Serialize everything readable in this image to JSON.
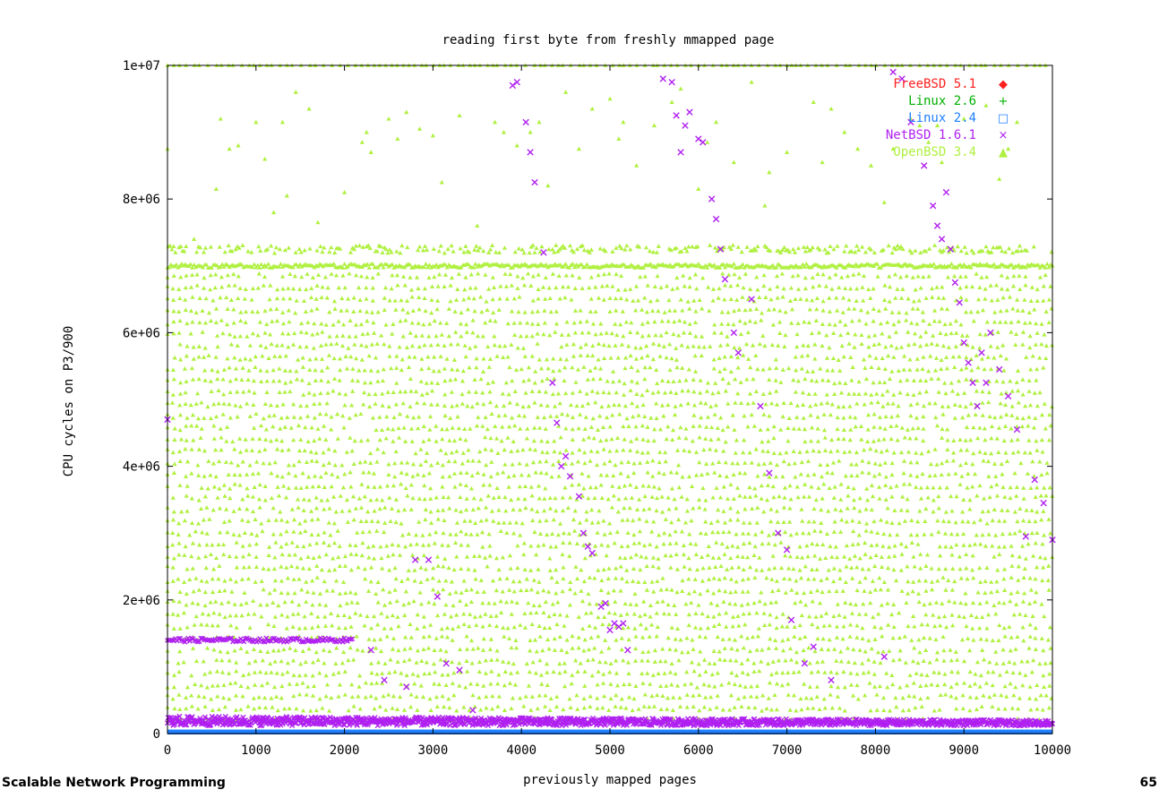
{
  "footer": {
    "left": "Scalable Network Programming",
    "right": "65"
  },
  "chart_data": {
    "type": "scatter",
    "title": "reading first byte from freshly mmapped page",
    "xlabel": "previously mapped pages",
    "ylabel": "CPU cycles on P3/900",
    "xlim": [
      0,
      10000
    ],
    "ylim": [
      0,
      10000000
    ],
    "xticks": [
      0,
      1000,
      2000,
      3000,
      4000,
      5000,
      6000,
      7000,
      8000,
      9000,
      10000
    ],
    "xtick_labels": [
      "0",
      "1000",
      "2000",
      "3000",
      "4000",
      "5000",
      "6000",
      "7000",
      "8000",
      "9000",
      "10000"
    ],
    "yticks": [
      0,
      2000000,
      4000000,
      6000000,
      8000000,
      10000000
    ],
    "ytick_labels": [
      "0",
      "2e+06",
      "4e+06",
      "6e+06",
      "8e+06",
      "1e+07"
    ],
    "grid": false,
    "legend_position": "top-right",
    "series": [
      {
        "name": "FreeBSD 5.1",
        "marker": "◆",
        "color": "#ff2020",
        "y_band": [
          0,
          40000
        ],
        "x": [],
        "y": []
      },
      {
        "name": "Linux 2.6",
        "marker": "+",
        "color": "#00b000",
        "y_band": [
          0,
          40000
        ],
        "x": [],
        "y": []
      },
      {
        "name": "Linux 2.4",
        "marker": "□",
        "color": "#2080ff",
        "y_band": [
          0,
          60000
        ],
        "x": [],
        "y": []
      },
      {
        "name": "NetBSD 1.6.1",
        "marker": "×",
        "color": "#b020f0",
        "baseline_band": [
          120000,
          260000
        ],
        "plateau": {
          "x_range": [
            0,
            2100
          ],
          "y": 1400000
        },
        "x": [
          0,
          2300,
          2450,
          2700,
          2800,
          2950,
          3050,
          3150,
          3300,
          3450,
          3900,
          3950,
          4050,
          4100,
          4150,
          4250,
          4350,
          4400,
          4450,
          4500,
          4550,
          4650,
          4700,
          4750,
          4800,
          4900,
          4950,
          5000,
          5050,
          5100,
          5150,
          5200,
          5600,
          5700,
          5750,
          5800,
          5850,
          5900,
          6000,
          6050,
          6150,
          6200,
          6250,
          6300,
          6400,
          6450,
          6600,
          6700,
          6800,
          6900,
          7000,
          7050,
          7200,
          7300,
          7500,
          8100,
          8200,
          8300,
          8400,
          8550,
          8650,
          8700,
          8750,
          8800,
          8850,
          8900,
          8950,
          9000,
          9050,
          9100,
          9150,
          9200,
          9250,
          9300,
          9400,
          9500,
          9600,
          9700,
          9800,
          9900,
          10000
        ],
        "y": [
          4700000,
          1250000,
          800000,
          700000,
          2600000,
          2600000,
          2050000,
          1050000,
          950000,
          350000,
          9700000,
          9750000,
          9150000,
          8700000,
          8250000,
          7200000,
          5250000,
          4650000,
          4000000,
          4150000,
          3850000,
          3550000,
          3000000,
          2800000,
          2700000,
          1900000,
          1950000,
          1550000,
          1650000,
          1600000,
          1650000,
          1250000,
          9800000,
          9750000,
          9250000,
          8700000,
          9100000,
          9300000,
          8900000,
          8850000,
          8000000,
          7700000,
          7250000,
          6800000,
          6000000,
          5700000,
          6500000,
          4900000,
          3900000,
          3000000,
          2750000,
          1700000,
          1050000,
          1300000,
          800000,
          1150000,
          9900000,
          9800000,
          9150000,
          8500000,
          7900000,
          7600000,
          7400000,
          8100000,
          7250000,
          6750000,
          6450000,
          5850000,
          5550000,
          5250000,
          4900000,
          5700000,
          5250000,
          6000000,
          5450000,
          5050000,
          4550000,
          2950000,
          3800000,
          3450000,
          2900000
        ]
      },
      {
        "name": "OpenBSD 3.4",
        "marker": "▲",
        "color": "#b0f040",
        "level_spacing": 175000,
        "level_range": [
          200000,
          7000000
        ],
        "ceiling": 10000000,
        "x": [
          0,
          300,
          550,
          600,
          700,
          800,
          1000,
          1100,
          1200,
          1300,
          1350,
          1450,
          1600,
          1700,
          2000,
          2200,
          2250,
          2300,
          2500,
          2600,
          2700,
          2850,
          3000,
          3100,
          3300,
          3500,
          3700,
          3800,
          3950,
          4100,
          4200,
          4300,
          4500,
          4650,
          4800,
          5000,
          5100,
          5150,
          5300,
          5500,
          5700,
          5800,
          6000,
          6100,
          6200,
          6400,
          6600,
          6750,
          6800,
          7000,
          7300,
          7400,
          7500,
          7650,
          7800,
          7950,
          8100,
          8200,
          8400,
          8500,
          8600,
          8700,
          8750,
          9000,
          9250,
          9400,
          9500,
          9600
        ],
        "y": [
          8750000,
          7400000,
          8150000,
          9200000,
          8750000,
          8800000,
          9150000,
          8600000,
          7800000,
          9150000,
          8050000,
          9600000,
          9350000,
          7650000,
          8100000,
          8850000,
          9000000,
          8700000,
          9200000,
          8900000,
          9300000,
          9050000,
          8950000,
          8250000,
          9250000,
          7600000,
          9150000,
          9000000,
          8800000,
          9000000,
          9150000,
          8200000,
          9600000,
          8750000,
          9350000,
          9500000,
          8900000,
          9150000,
          8500000,
          9100000,
          9450000,
          9650000,
          8150000,
          8850000,
          9150000,
          8550000,
          9750000,
          7900000,
          8400000,
          8700000,
          9450000,
          8550000,
          9350000,
          9000000,
          8750000,
          8500000,
          7950000,
          8750000,
          9200000,
          9100000,
          8850000,
          9100000,
          8550000,
          9200000,
          9400000,
          8300000,
          8750000,
          9150000
        ]
      }
    ]
  }
}
